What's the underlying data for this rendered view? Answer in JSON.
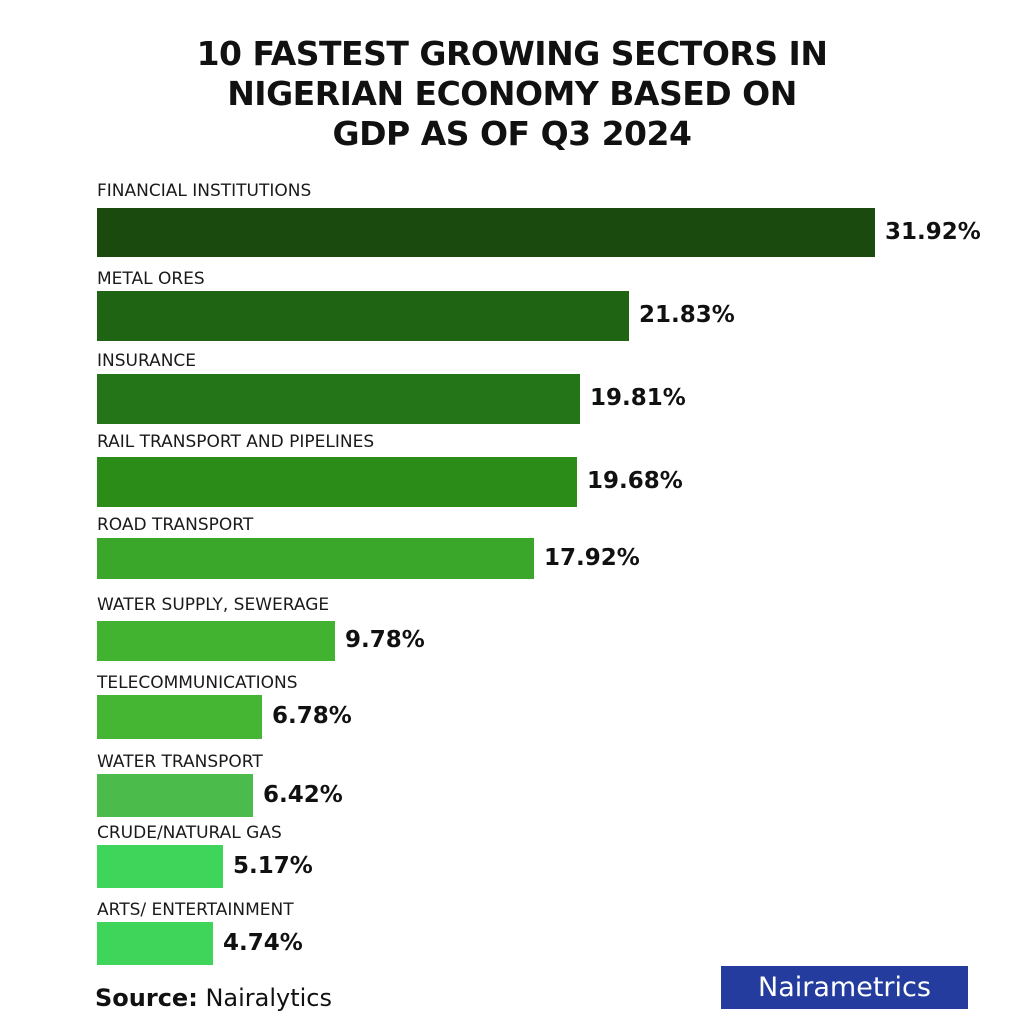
{
  "chart_data": {
    "type": "bar",
    "orientation": "horizontal",
    "title": [
      "10 FASTEST GROWING SECTORS IN",
      "NIGERIAN ECONOMY BASED ON",
      "GDP AS OF Q3 2024"
    ],
    "categories": [
      "FINANCIAL INSTITUTIONS",
      "METAL ORES",
      "INSURANCE",
      "RAIL TRANSPORT AND PIPELINES",
      "ROAD TRANSPORT",
      "WATER SUPPLY, SEWERAGE",
      "TELECOMMUNICATIONS",
      "WATER TRANSPORT",
      "CRUDE/NATURAL GAS",
      "ARTS/ ENTERTAINMENT"
    ],
    "values": [
      31.92,
      21.83,
      19.81,
      19.68,
      17.92,
      9.78,
      6.78,
      6.42,
      5.17,
      4.74
    ],
    "value_labels": [
      "31.92%",
      "21.83%",
      "19.81%",
      "19.68%",
      "17.92%",
      "9.78%",
      "6.78%",
      "6.42%",
      "5.17%",
      "4.74%"
    ],
    "colors": [
      "#1a4a0e",
      "#1e6412",
      "#237518",
      "#2b8d18",
      "#3aa62a",
      "#41b330",
      "#44b634",
      "#4bbb4b",
      "#3fd45a",
      "#3fd45a"
    ],
    "grid": false,
    "legend": "none"
  },
  "source": {
    "label": "Source:",
    "value": "Nairalytics"
  },
  "logo": "Nairametrics",
  "colors": {
    "logo_bg": "#233c9e"
  }
}
